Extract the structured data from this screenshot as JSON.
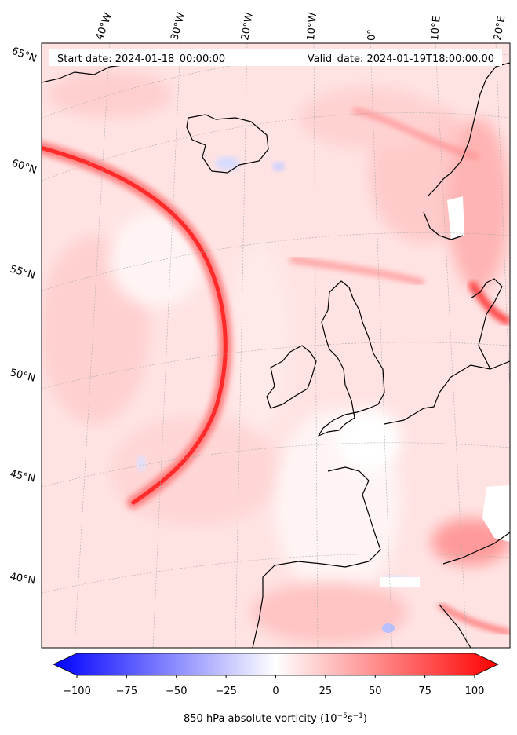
{
  "header": {
    "start_date": "Start date: 2024-01-18_00:00:00",
    "valid_date": "Valid_date: 2024-01-19T18:00:00.00"
  },
  "longitude_labels": [
    "40°W",
    "30°W",
    "20°W",
    "10°W",
    "0°",
    "10°E",
    "20°E"
  ],
  "latitude_labels": [
    "65°N",
    "60°N",
    "55°N",
    "50°N",
    "45°N",
    "40°N"
  ],
  "colorbar": {
    "ticks": [
      "−100",
      "−75",
      "−50",
      "−25",
      "0",
      "25",
      "50",
      "75",
      "100"
    ],
    "min": -100,
    "max": 100,
    "label": "850 hPa absolute vorticity (10",
    "label_exp1": "−5",
    "label_mid": "s",
    "label_exp2": "−1",
    "label_end": ")",
    "colormap": "bwr",
    "colors": {
      "low": "#0000ff",
      "mid": "#ffffff",
      "high": "#ff0000"
    }
  }
}
